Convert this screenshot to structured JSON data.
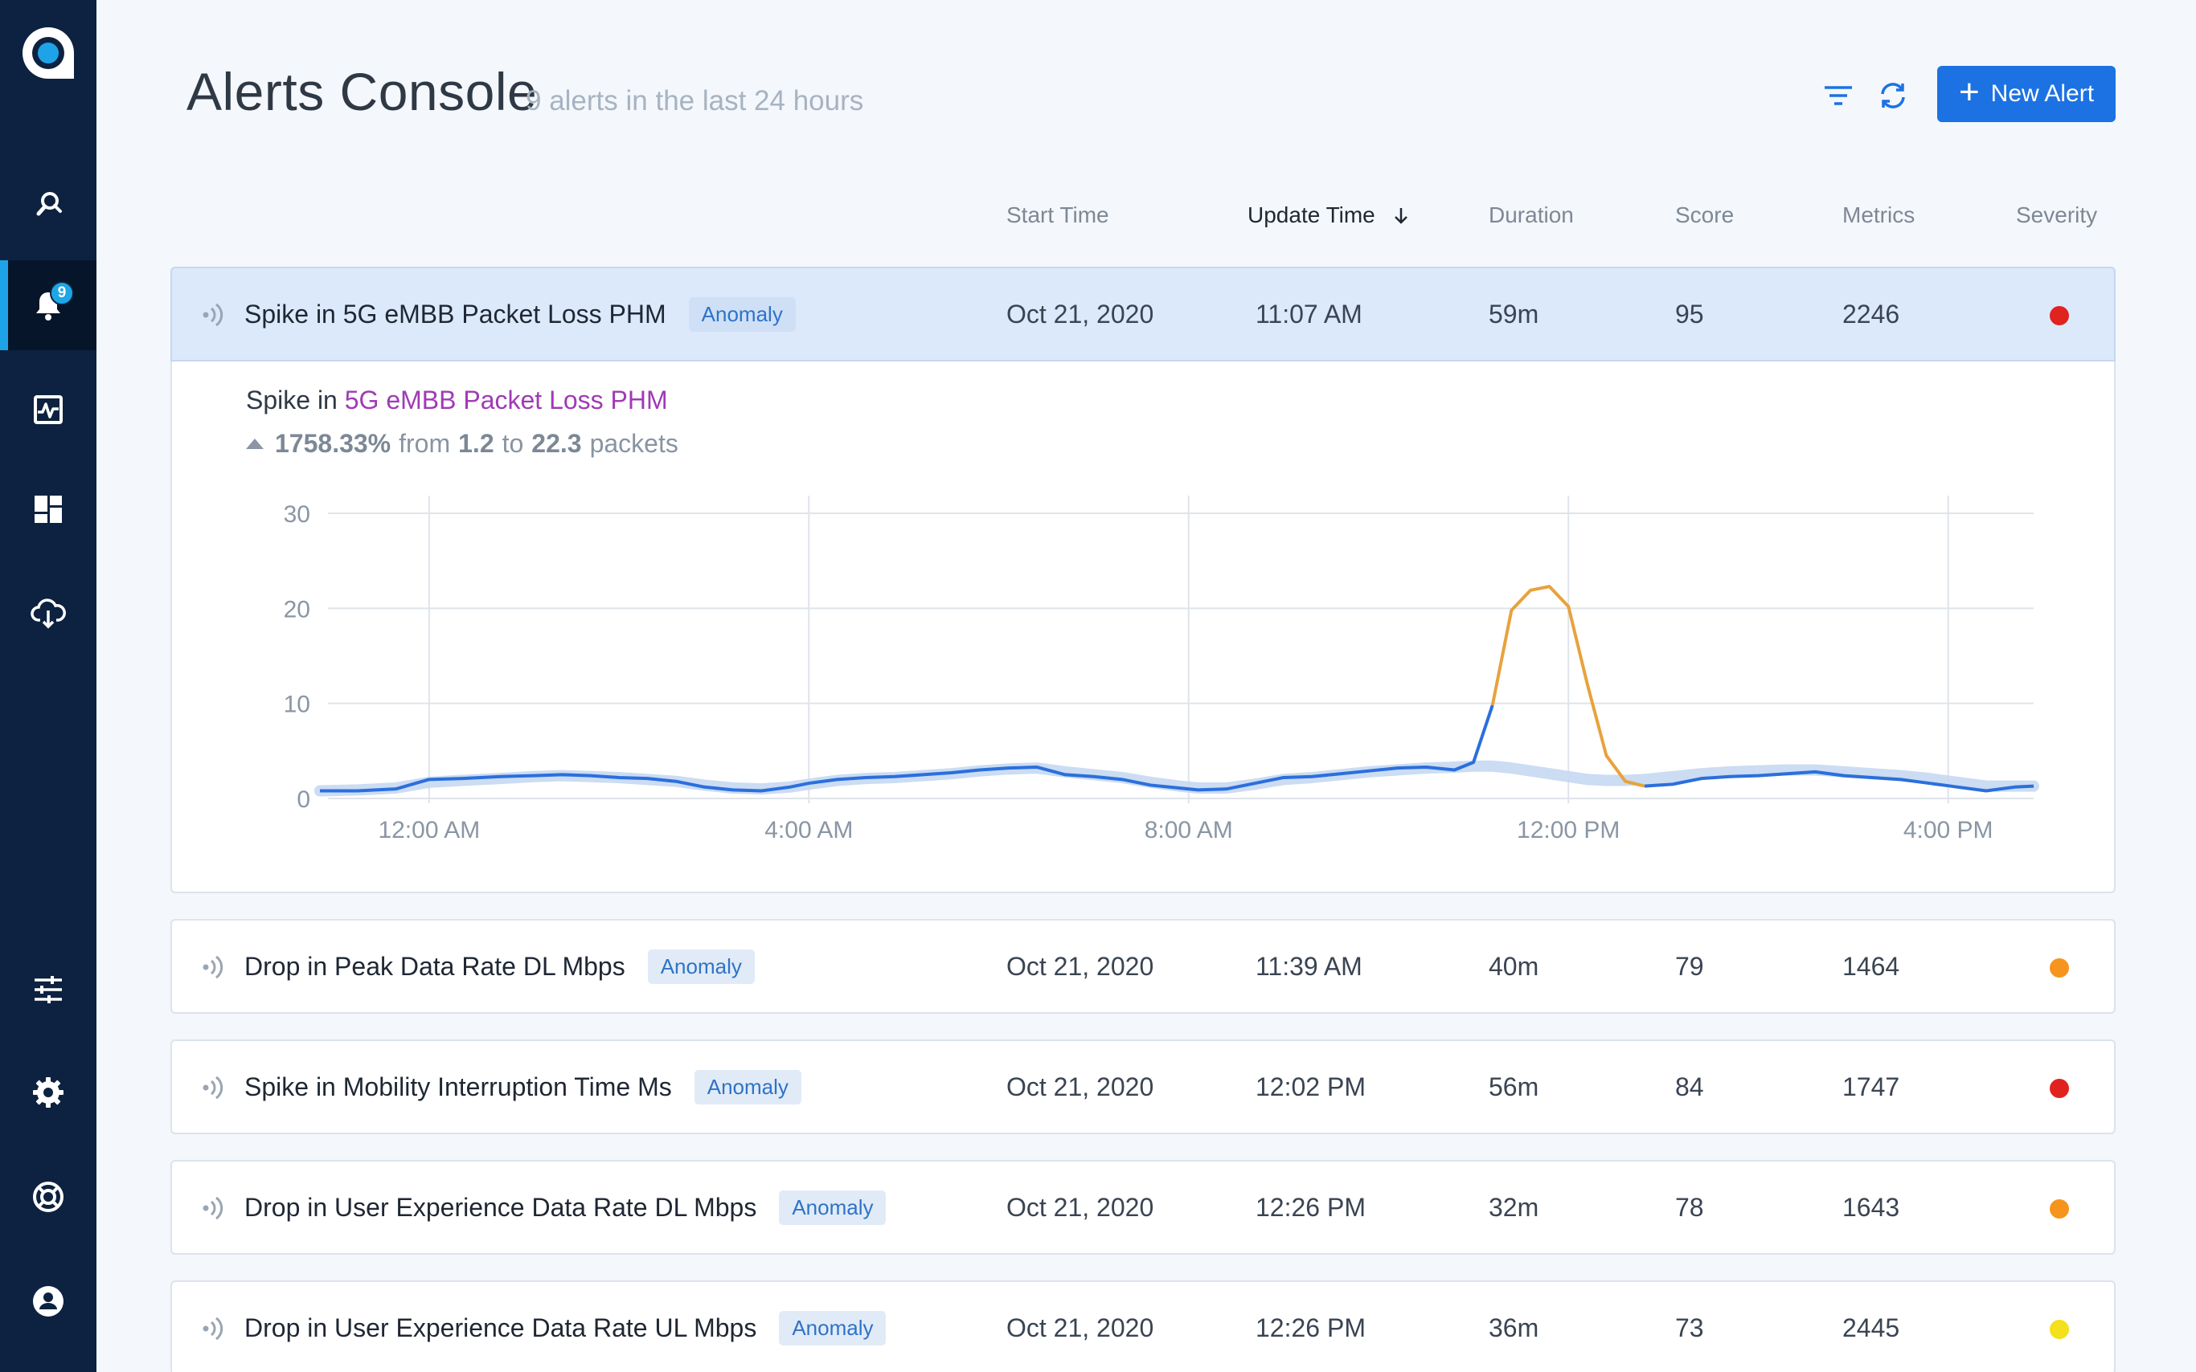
{
  "header": {
    "title": "Alerts Console",
    "subtitle": "9 alerts in the last 24 hours",
    "new_alert_label": "New Alert"
  },
  "sidebar": {
    "badge_count": "9",
    "items": [
      "search-icon",
      "alerts-icon",
      "activity-icon",
      "dashboard-icon",
      "cloud-download-icon",
      "sliders-icon",
      "gear-icon",
      "support-icon",
      "user-icon"
    ]
  },
  "columns": {
    "start_time": "Start Time",
    "update_time": "Update Time",
    "duration": "Duration",
    "score": "Score",
    "metrics": "Metrics",
    "severity": "Severity"
  },
  "colors": {
    "accent": "#1c72e3",
    "critical": "#e0231f",
    "major": "#f7941d",
    "minor": "#f4e01b",
    "spike_line": "#e8a23d",
    "baseline_band": "#c5d8f2",
    "series_line": "#2b6fdc"
  },
  "alerts": [
    {
      "title": "Spike in 5G eMBB Packet Loss PHM",
      "tag": "Anomaly",
      "start": "Oct 21, 2020",
      "update": "11:07 AM",
      "duration": "59m",
      "score": "95",
      "metrics": "2246",
      "severity": "critical"
    },
    {
      "title": "Drop in Peak Data Rate DL Mbps",
      "tag": "Anomaly",
      "start": "Oct 21, 2020",
      "update": "11:39 AM",
      "duration": "40m",
      "score": "79",
      "metrics": "1464",
      "severity": "major"
    },
    {
      "title": "Spike in Mobility Interruption Time Ms",
      "tag": "Anomaly",
      "start": "Oct 21, 2020",
      "update": "12:02 PM",
      "duration": "56m",
      "score": "84",
      "metrics": "1747",
      "severity": "critical"
    },
    {
      "title": "Drop in User Experience Data Rate DL Mbps",
      "tag": "Anomaly",
      "start": "Oct 21, 2020",
      "update": "12:26 PM",
      "duration": "32m",
      "score": "78",
      "metrics": "1643",
      "severity": "major"
    },
    {
      "title": "Drop in User Experience Data Rate UL Mbps",
      "tag": "Anomaly",
      "start": "Oct 21, 2020",
      "update": "12:26 PM",
      "duration": "36m",
      "score": "73",
      "metrics": "2445",
      "severity": "minor"
    }
  ],
  "detail": {
    "prefix": "Spike in",
    "metric": "5G eMBB Packet Loss PHM",
    "change": "1758.33%",
    "from_word": "from",
    "from_value": "1.2",
    "to_word": "to",
    "to_value": "22.3",
    "unit": "packets"
  },
  "chart_data": {
    "type": "line",
    "title": "",
    "xlabel": "",
    "ylabel": "",
    "ylim": [
      0,
      30
    ],
    "yticks": [
      0,
      10,
      20,
      30
    ],
    "xlim": [
      -1.15,
      16.9
    ],
    "xticks": [
      {
        "value": 0,
        "label": "12:00 AM"
      },
      {
        "value": 4,
        "label": "4:00 AM"
      },
      {
        "value": 8,
        "label": "8:00 AM"
      },
      {
        "value": 12,
        "label": "12:00 PM"
      },
      {
        "value": 16,
        "label": "4:00 PM"
      }
    ],
    "x": [
      -1.15,
      -0.75,
      -0.35,
      0,
      0.35,
      0.75,
      1.1,
      1.4,
      1.7,
      2,
      2.3,
      2.6,
      2.9,
      3.2,
      3.5,
      3.8,
      4,
      4.3,
      4.6,
      4.9,
      5.2,
      5.5,
      5.8,
      6.1,
      6.4,
      6.7,
      7,
      7.3,
      7.6,
      7.9,
      8.1,
      8.4,
      8.7,
      9,
      9.3,
      9.6,
      9.9,
      10.2,
      10.5,
      10.8,
      11,
      11.2,
      11.4,
      11.6,
      11.8,
      12,
      12.2,
      12.4,
      12.6,
      12.8,
      13.1,
      13.4,
      13.7,
      14,
      14.3,
      14.6,
      14.9,
      15.2,
      15.5,
      15.8,
      16.1,
      16.4,
      16.7,
      16.9
    ],
    "series": [
      {
        "name": "Packet Loss",
        "values": [
          0.8,
          0.8,
          1.0,
          2.0,
          2.1,
          2.3,
          2.4,
          2.5,
          2.4,
          2.2,
          2.1,
          1.8,
          1.2,
          0.9,
          0.8,
          1.2,
          1.6,
          2.0,
          2.2,
          2.3,
          2.5,
          2.7,
          3.0,
          3.2,
          3.3,
          2.5,
          2.3,
          2.0,
          1.4,
          1.1,
          0.9,
          1.0,
          1.6,
          2.2,
          2.3,
          2.6,
          2.9,
          3.2,
          3.3,
          3.0,
          3.8,
          9.8,
          19.8,
          21.9,
          22.3,
          20.2,
          12.0,
          4.5,
          1.8,
          1.3,
          1.5,
          2.1,
          2.3,
          2.4,
          2.6,
          2.8,
          2.4,
          2.2,
          2.0,
          1.6,
          1.2,
          0.8,
          1.2,
          1.3
        ]
      },
      {
        "name": "Baseline",
        "values": [
          0.8,
          0.9,
          1.1,
          1.7,
          1.9,
          2.1,
          2.3,
          2.4,
          2.3,
          2.2,
          2.0,
          1.8,
          1.4,
          1.1,
          1.0,
          1.2,
          1.5,
          1.9,
          2.1,
          2.2,
          2.4,
          2.6,
          2.9,
          3.1,
          3.2,
          2.8,
          2.5,
          2.2,
          1.7,
          1.3,
          1.1,
          1.1,
          1.5,
          2.0,
          2.2,
          2.5,
          2.8,
          3.0,
          3.2,
          3.3,
          3.4,
          3.4,
          3.2,
          2.9,
          2.6,
          2.3,
          2.0,
          1.9,
          1.9,
          2.0,
          2.3,
          2.6,
          2.8,
          2.9,
          3.0,
          3.0,
          2.8,
          2.6,
          2.4,
          2.1,
          1.7,
          1.3,
          1.3,
          1.3
        ]
      }
    ],
    "spike_range": [
      11.2,
      12.8
    ]
  }
}
